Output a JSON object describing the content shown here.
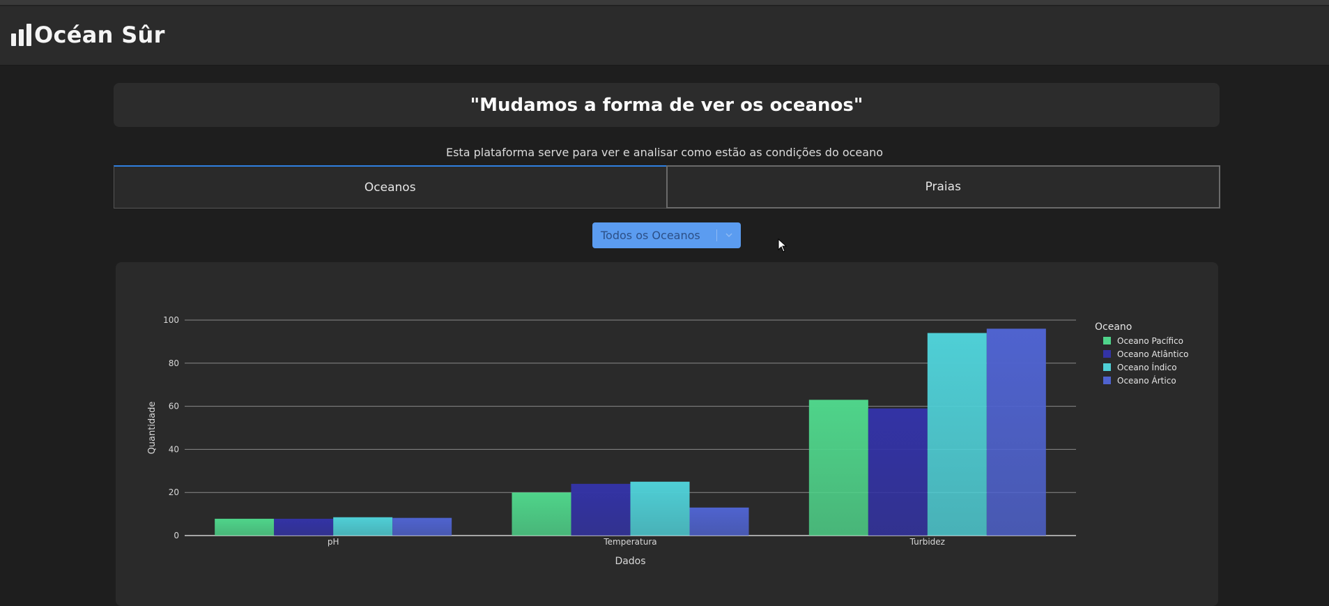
{
  "navbar": {
    "brand": "Océan Sûr"
  },
  "hero": {
    "quote": "\"Mudamos a forma de ver os oceanos\""
  },
  "subtitle": "Esta plataforma serve para ver e analisar como estão as condições do oceano",
  "tabs": [
    {
      "label": "Oceanos",
      "active": true
    },
    {
      "label": "Praias",
      "active": false
    }
  ],
  "filter": {
    "selected": "Todos os Oceanos"
  },
  "chart_data": {
    "type": "bar",
    "xlabel": "Dados",
    "ylabel": "Quantidade",
    "ylim": [
      0,
      100
    ],
    "yticks": [
      0,
      20,
      40,
      60,
      80,
      100
    ],
    "grid": true,
    "legend_title": "Oceano",
    "legend_position": "right",
    "categories": [
      "pH",
      "Temperatura",
      "Turbidez"
    ],
    "series": [
      {
        "name": "Oceano Pacífico",
        "color": "#4fd48a",
        "values": [
          7.8,
          20,
          63
        ]
      },
      {
        "name": "Oceano Atlântico",
        "color": "#3333a5",
        "values": [
          7.8,
          24,
          59
        ]
      },
      {
        "name": "Oceano Índico",
        "color": "#4fcfd6",
        "values": [
          8.5,
          25,
          94
        ]
      },
      {
        "name": "Oceano Ártico",
        "color": "#4f63cf",
        "values": [
          8.2,
          13,
          96
        ]
      }
    ]
  }
}
